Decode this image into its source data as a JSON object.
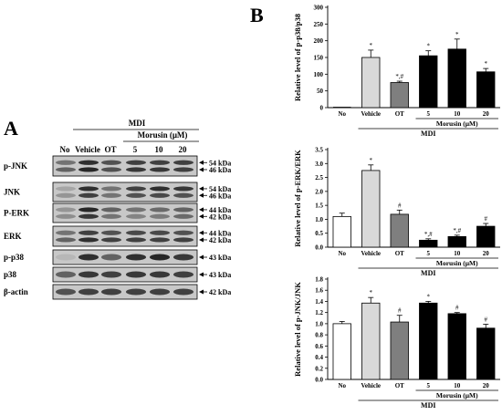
{
  "panel_a": {
    "letter": "A",
    "treatment": "MDI",
    "morusin_label": "Morusin (μM)",
    "lanes": [
      "No",
      "Vehicle",
      "OT",
      "5",
      "10",
      "20"
    ],
    "blots": [
      {
        "name": "p-JNK",
        "bands": [
          "54 kDa",
          "46 kDa"
        ]
      },
      {
        "name": "JNK",
        "bands": [
          "54 kDa",
          "46 kDa"
        ]
      },
      {
        "name": "P-ERK",
        "bands": [
          "44 kDa",
          "42 kDa"
        ]
      },
      {
        "name": "ERK",
        "bands": [
          "44 kDa",
          "42 kDa"
        ]
      },
      {
        "name": "p-p38",
        "bands": [
          "43 kDa"
        ]
      },
      {
        "name": "p38",
        "bands": [
          "43 kDa"
        ]
      },
      {
        "name": "β-actin",
        "bands": [
          "42 kDa"
        ]
      }
    ]
  },
  "panel_b": {
    "letter": "B"
  },
  "colors": {
    "no": "#ffffff",
    "vehicle": "#d9d9d9",
    "ot": "#7f7f7f",
    "morusin": "#000000"
  },
  "chart_data": [
    {
      "type": "bar",
      "categories": [
        "No",
        "Vehicle",
        "OT",
        "5",
        "10",
        "20"
      ],
      "values": [
        0,
        150,
        75,
        155,
        175,
        107
      ],
      "errors": [
        0,
        22,
        4,
        15,
        30,
        10
      ],
      "sig": [
        "",
        "*",
        "*,#",
        "*",
        "*",
        "*"
      ],
      "ylabel": "Relative level of p-p38/p38",
      "yticks": [
        0,
        50,
        100,
        150,
        200,
        250,
        300
      ],
      "ylim": [
        0,
        300
      ],
      "group_label": "Morusin  (μM)",
      "treatment_label": "MDI"
    },
    {
      "type": "bar",
      "categories": [
        "No",
        "Vehicle",
        "OT",
        "5",
        "10",
        "20"
      ],
      "values": [
        1.1,
        2.75,
        1.18,
        0.25,
        0.38,
        0.75
      ],
      "errors": [
        0.12,
        0.2,
        0.15,
        0.05,
        0.05,
        0.1
      ],
      "sig": [
        "",
        "*",
        "#",
        "*,#",
        "*,#",
        "#"
      ],
      "ylabel": "Relative level of p-ERK/ERK",
      "yticks": [
        0.0,
        0.5,
        1.0,
        1.5,
        2.0,
        2.5,
        3.0,
        3.5
      ],
      "ylim": [
        0,
        3.5
      ],
      "group_label": "Morusin  (μM)",
      "treatment_label": "MDI"
    },
    {
      "type": "bar",
      "categories": [
        "No",
        "Vehicle",
        "OT",
        "5",
        "10",
        "20"
      ],
      "values": [
        1.0,
        1.37,
        1.03,
        1.37,
        1.18,
        0.92
      ],
      "errors": [
        0.04,
        0.1,
        0.12,
        0.03,
        0.02,
        0.07
      ],
      "sig": [
        "",
        "*",
        "#",
        "*",
        "#",
        "#"
      ],
      "ylabel": "Relative level of p-JNK/JNK",
      "yticks": [
        0.0,
        0.2,
        0.4,
        0.6,
        0.8,
        1.0,
        1.2,
        1.4,
        1.6,
        1.8
      ],
      "ylim": [
        0,
        1.8
      ],
      "group_label": "Morusin  (μM)",
      "treatment_label": "MDI"
    }
  ]
}
